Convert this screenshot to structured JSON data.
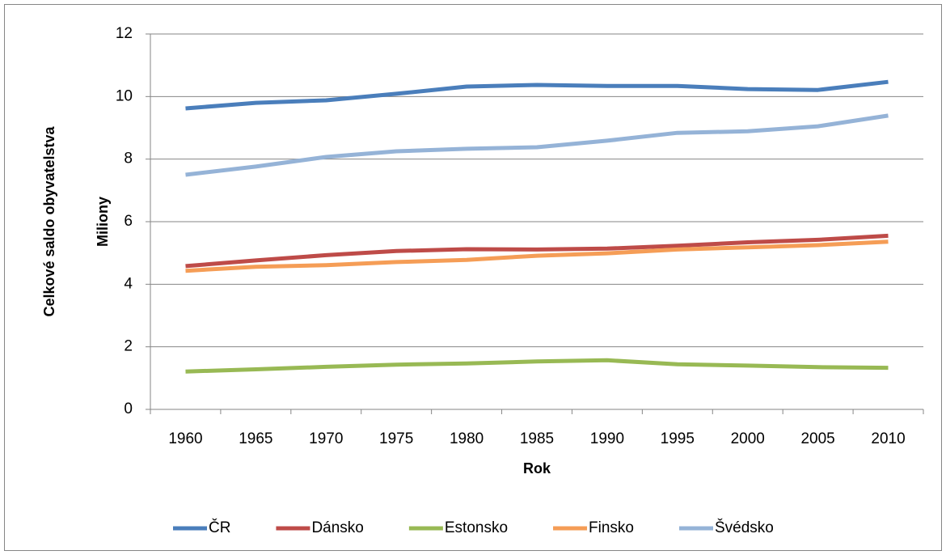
{
  "chart_data": {
    "type": "line",
    "y_label": [
      "Celkové saldo obyvatelstva",
      "Miliony"
    ],
    "x_label": "Rok",
    "categories": [
      "1960",
      "1965",
      "1970",
      "1975",
      "1980",
      "1985",
      "1990",
      "1995",
      "2000",
      "2005",
      "2010"
    ],
    "series": [
      {
        "name": "ČR",
        "color": "#4a7ebb",
        "values": [
          9.62,
          9.8,
          9.88,
          10.09,
          10.32,
          10.37,
          10.34,
          10.34,
          10.24,
          10.21,
          10.47
        ]
      },
      {
        "name": "Dánsko",
        "color": "#be4b48",
        "values": [
          4.58,
          4.76,
          4.93,
          5.06,
          5.12,
          5.11,
          5.14,
          5.23,
          5.34,
          5.42,
          5.55
        ]
      },
      {
        "name": "Estonsko",
        "color": "#98b954",
        "values": [
          1.21,
          1.28,
          1.36,
          1.43,
          1.47,
          1.53,
          1.57,
          1.44,
          1.4,
          1.35,
          1.33
        ]
      },
      {
        "name": "Finsko",
        "color": "#f59d56",
        "values": [
          4.43,
          4.56,
          4.61,
          4.71,
          4.78,
          4.91,
          4.99,
          5.11,
          5.18,
          5.25,
          5.36
        ]
      },
      {
        "name": "Švédsko",
        "color": "#95b3d7",
        "values": [
          7.5,
          7.76,
          8.07,
          8.25,
          8.33,
          8.38,
          8.59,
          8.84,
          8.89,
          9.05,
          9.39
        ]
      }
    ],
    "ylim": [
      0,
      12
    ],
    "yticks": [
      0,
      2,
      4,
      6,
      8,
      10,
      12
    ],
    "grid": true,
    "legend": "bottom"
  }
}
